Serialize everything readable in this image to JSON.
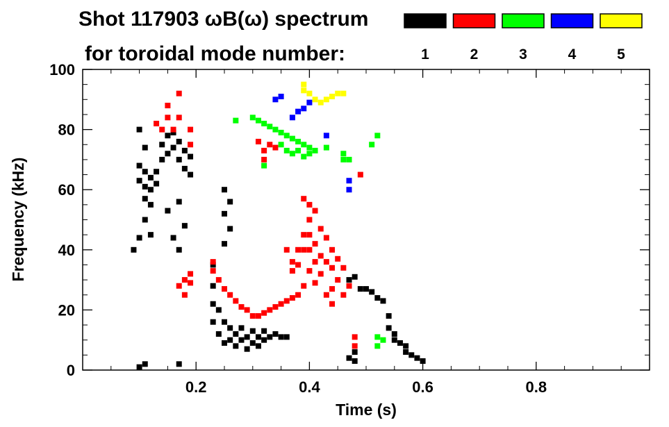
{
  "chart_data": {
    "type": "scatter",
    "title_line1": "Shot 117903 ωB(ω) spectrum",
    "title_line2": "for toroidal mode number:",
    "xlabel": "Time (s)",
    "ylabel": "Frequency (kHz)",
    "xlim": [
      0.0,
      1.0
    ],
    "ylim": [
      0,
      100
    ],
    "x_ticks": [
      "0.2",
      "0.4",
      "0.6",
      "0.8"
    ],
    "x_tick_values": [
      0.2,
      0.4,
      0.6,
      0.8
    ],
    "y_ticks": [
      "0",
      "20",
      "40",
      "60",
      "80",
      "100"
    ],
    "y_tick_values": [
      0,
      20,
      40,
      60,
      80,
      100
    ],
    "legend": [
      {
        "mode": "1",
        "color": "#000000"
      },
      {
        "mode": "2",
        "color": "#ff0000"
      },
      {
        "mode": "3",
        "color": "#00ff00"
      },
      {
        "mode": "4",
        "color": "#0000ff"
      },
      {
        "mode": "5",
        "color": "#ffff00"
      }
    ],
    "series": [
      {
        "name": "1",
        "color": "#000000",
        "points": [
          [
            0.1,
            68
          ],
          [
            0.1,
            63
          ],
          [
            0.11,
            66
          ],
          [
            0.11,
            61
          ],
          [
            0.11,
            57
          ],
          [
            0.12,
            64
          ],
          [
            0.12,
            60
          ],
          [
            0.12,
            55
          ],
          [
            0.1,
            80
          ],
          [
            0.11,
            74
          ],
          [
            0.09,
            40
          ],
          [
            0.1,
            44
          ],
          [
            0.11,
            50
          ],
          [
            0.12,
            45
          ],
          [
            0.13,
            66
          ],
          [
            0.13,
            62
          ],
          [
            0.14,
            70
          ],
          [
            0.14,
            75
          ],
          [
            0.15,
            78
          ],
          [
            0.15,
            72
          ],
          [
            0.16,
            79
          ],
          [
            0.16,
            74
          ],
          [
            0.17,
            76
          ],
          [
            0.17,
            70
          ],
          [
            0.18,
            73
          ],
          [
            0.18,
            67
          ],
          [
            0.19,
            71
          ],
          [
            0.19,
            65
          ],
          [
            0.17,
            56
          ],
          [
            0.18,
            48
          ],
          [
            0.17,
            40
          ],
          [
            0.15,
            53
          ],
          [
            0.16,
            44
          ],
          [
            0.25,
            60
          ],
          [
            0.25,
            52
          ],
          [
            0.26,
            56
          ],
          [
            0.26,
            47
          ],
          [
            0.25,
            42
          ],
          [
            0.23,
            35
          ],
          [
            0.23,
            28
          ],
          [
            0.23,
            22
          ],
          [
            0.23,
            16
          ],
          [
            0.24,
            12
          ],
          [
            0.24,
            20
          ],
          [
            0.25,
            9
          ],
          [
            0.25,
            16
          ],
          [
            0.26,
            10
          ],
          [
            0.26,
            14
          ],
          [
            0.27,
            8
          ],
          [
            0.27,
            12
          ],
          [
            0.28,
            10
          ],
          [
            0.28,
            14
          ],
          [
            0.29,
            7
          ],
          [
            0.29,
            11
          ],
          [
            0.3,
            9
          ],
          [
            0.3,
            13
          ],
          [
            0.31,
            8
          ],
          [
            0.31,
            11
          ],
          [
            0.32,
            10
          ],
          [
            0.32,
            13
          ],
          [
            0.33,
            11
          ],
          [
            0.34,
            12
          ],
          [
            0.35,
            11
          ],
          [
            0.36,
            11
          ],
          [
            0.47,
            4
          ],
          [
            0.48,
            3
          ],
          [
            0.48,
            6
          ],
          [
            0.47,
            30
          ],
          [
            0.48,
            31
          ],
          [
            0.49,
            27
          ],
          [
            0.5,
            27
          ],
          [
            0.51,
            26
          ],
          [
            0.52,
            24
          ],
          [
            0.53,
            23
          ],
          [
            0.54,
            18
          ],
          [
            0.54,
            14
          ],
          [
            0.55,
            12
          ],
          [
            0.55,
            10
          ],
          [
            0.56,
            9
          ],
          [
            0.57,
            8
          ],
          [
            0.57,
            6
          ],
          [
            0.58,
            5
          ],
          [
            0.59,
            4
          ],
          [
            0.6,
            3
          ],
          [
            0.1,
            1
          ],
          [
            0.11,
            2
          ],
          [
            0.17,
            2
          ]
        ]
      },
      {
        "name": "2",
        "color": "#ff0000",
        "points": [
          [
            0.13,
            82
          ],
          [
            0.14,
            80
          ],
          [
            0.15,
            84
          ],
          [
            0.15,
            88
          ],
          [
            0.16,
            80
          ],
          [
            0.17,
            92
          ],
          [
            0.17,
            84
          ],
          [
            0.19,
            80
          ],
          [
            0.19,
            75
          ],
          [
            0.17,
            28
          ],
          [
            0.18,
            30
          ],
          [
            0.18,
            25
          ],
          [
            0.19,
            32
          ],
          [
            0.19,
            29
          ],
          [
            0.23,
            36
          ],
          [
            0.23,
            33
          ],
          [
            0.24,
            30
          ],
          [
            0.25,
            27
          ],
          [
            0.26,
            25
          ],
          [
            0.27,
            23
          ],
          [
            0.28,
            21
          ],
          [
            0.29,
            20
          ],
          [
            0.3,
            18
          ],
          [
            0.31,
            18
          ],
          [
            0.32,
            19
          ],
          [
            0.33,
            20
          ],
          [
            0.34,
            21
          ],
          [
            0.35,
            22
          ],
          [
            0.36,
            23
          ],
          [
            0.37,
            24
          ],
          [
            0.38,
            25
          ],
          [
            0.31,
            76
          ],
          [
            0.32,
            73
          ],
          [
            0.32,
            70
          ],
          [
            0.33,
            75
          ],
          [
            0.34,
            74
          ],
          [
            0.37,
            36
          ],
          [
            0.37,
            33
          ],
          [
            0.38,
            40
          ],
          [
            0.38,
            35
          ],
          [
            0.39,
            45
          ],
          [
            0.39,
            40
          ],
          [
            0.4,
            50
          ],
          [
            0.4,
            45
          ],
          [
            0.4,
            40
          ],
          [
            0.41,
            42
          ],
          [
            0.41,
            36
          ],
          [
            0.42,
            47
          ],
          [
            0.42,
            38
          ],
          [
            0.42,
            32
          ],
          [
            0.43,
            44
          ],
          [
            0.43,
            36
          ],
          [
            0.44,
            40
          ],
          [
            0.44,
            34
          ],
          [
            0.44,
            27
          ],
          [
            0.45,
            37
          ],
          [
            0.45,
            30
          ],
          [
            0.46,
            34
          ],
          [
            0.46,
            25
          ],
          [
            0.47,
            28
          ],
          [
            0.39,
            57
          ],
          [
            0.4,
            55
          ],
          [
            0.41,
            53
          ],
          [
            0.43,
            25
          ],
          [
            0.44,
            22
          ],
          [
            0.36,
            40
          ],
          [
            0.39,
            28
          ],
          [
            0.41,
            29
          ],
          [
            0.49,
            65
          ],
          [
            0.48,
            11
          ],
          [
            0.48,
            8
          ],
          [
            0.4,
            33
          ]
        ]
      },
      {
        "name": "3",
        "color": "#00ff00",
        "points": [
          [
            0.3,
            84
          ],
          [
            0.31,
            83
          ],
          [
            0.32,
            82
          ],
          [
            0.33,
            81
          ],
          [
            0.34,
            80
          ],
          [
            0.35,
            79
          ],
          [
            0.36,
            78
          ],
          [
            0.37,
            77
          ],
          [
            0.38,
            76
          ],
          [
            0.39,
            75
          ],
          [
            0.4,
            74
          ],
          [
            0.41,
            73
          ],
          [
            0.35,
            75
          ],
          [
            0.36,
            73
          ],
          [
            0.37,
            72
          ],
          [
            0.38,
            73
          ],
          [
            0.39,
            71
          ],
          [
            0.4,
            72
          ],
          [
            0.43,
            74
          ],
          [
            0.46,
            70
          ],
          [
            0.46,
            72
          ],
          [
            0.47,
            70
          ],
          [
            0.52,
            78
          ],
          [
            0.51,
            75
          ],
          [
            0.52,
            11
          ],
          [
            0.52,
            8
          ],
          [
            0.53,
            10
          ],
          [
            0.27,
            83
          ],
          [
            0.32,
            68
          ]
        ]
      },
      {
        "name": "4",
        "color": "#0000ff",
        "points": [
          [
            0.34,
            90
          ],
          [
            0.35,
            91
          ],
          [
            0.37,
            84
          ],
          [
            0.38,
            86
          ],
          [
            0.39,
            87
          ],
          [
            0.4,
            89
          ],
          [
            0.43,
            78
          ],
          [
            0.47,
            60
          ],
          [
            0.47,
            63
          ]
        ]
      },
      {
        "name": "5",
        "color": "#ffff00",
        "points": [
          [
            0.39,
            95
          ],
          [
            0.39,
            93
          ],
          [
            0.4,
            92
          ],
          [
            0.41,
            90
          ],
          [
            0.42,
            89
          ],
          [
            0.43,
            90
          ],
          [
            0.44,
            91
          ],
          [
            0.45,
            92
          ],
          [
            0.46,
            92
          ]
        ]
      }
    ]
  }
}
